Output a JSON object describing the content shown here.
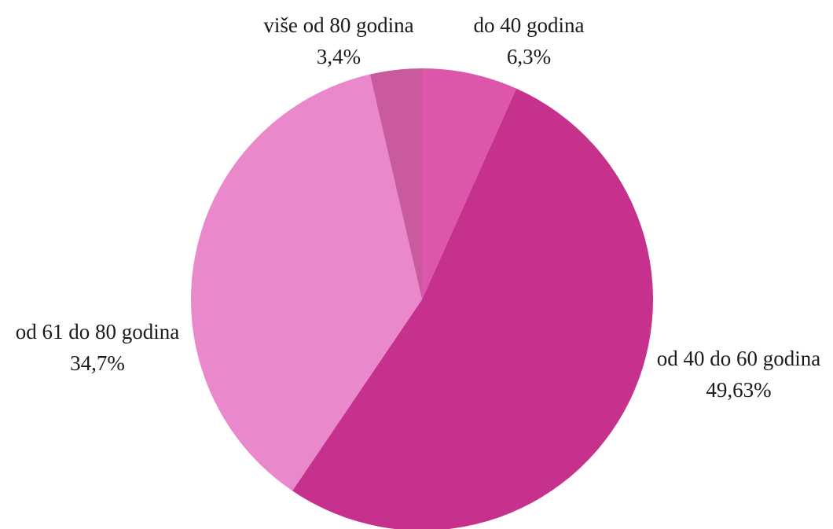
{
  "chart_data": {
    "type": "pie",
    "title": "",
    "start": "top",
    "direction": "clockwise",
    "slices": [
      {
        "label": "do 40 godina",
        "value_label": "6,3%",
        "value": 6.3,
        "color": "#dc57aa"
      },
      {
        "label": "od 40 do 60 godina",
        "value_label": "49,63%",
        "value": 49.63,
        "color": "#c6318d"
      },
      {
        "label": "od 61 do 80 godina",
        "value_label": "34,7%",
        "value": 34.7,
        "color": "#ea88cc"
      },
      {
        "label": "više od 80 godina",
        "value_label": "3,4%",
        "value": 3.4,
        "color": "#c95a9e"
      }
    ]
  }
}
